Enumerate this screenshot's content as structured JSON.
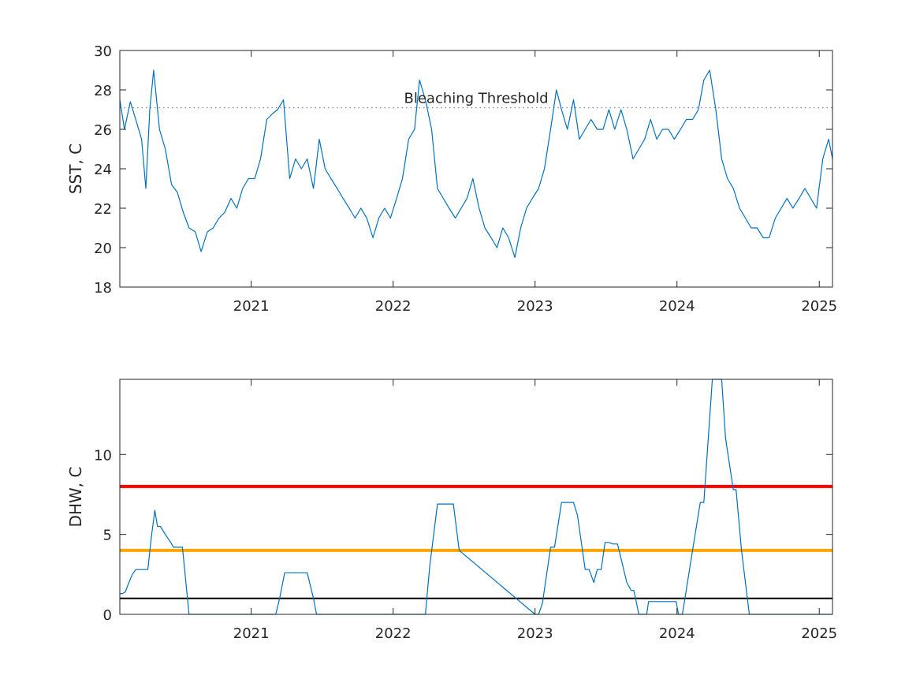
{
  "chart_data": [
    {
      "type": "line",
      "title": "",
      "xlabel": "",
      "ylabel": "SST, C",
      "xlim": [
        "2020-01-29",
        "2025-02-04"
      ],
      "ylim": [
        18,
        30
      ],
      "yticks": [
        18,
        20,
        22,
        24,
        26,
        28,
        30
      ],
      "xticks": [
        {
          "date": "2021-01-01",
          "label": "2021"
        },
        {
          "date": "2022-01-01",
          "label": "2022"
        },
        {
          "date": "2023-01-01",
          "label": "2023"
        },
        {
          "date": "2024-01-01",
          "label": "2024"
        },
        {
          "date": "2025-01-01",
          "label": "2025"
        }
      ],
      "grid": false,
      "series": [
        {
          "color": "#0072BD",
          "x": [
            "2020-01-29",
            "2020-02-10",
            "2020-02-25",
            "2020-03-10",
            "2020-03-25",
            "2020-04-05",
            "2020-04-15",
            "2020-04-25",
            "2020-05-10",
            "2020-05-25",
            "2020-06-10",
            "2020-06-25",
            "2020-07-10",
            "2020-07-25",
            "2020-08-10",
            "2020-08-25",
            "2020-09-10",
            "2020-09-25",
            "2020-10-10",
            "2020-10-25",
            "2020-11-10",
            "2020-11-25",
            "2020-12-10",
            "2020-12-25",
            "2021-01-10",
            "2021-01-25",
            "2021-02-10",
            "2021-02-25",
            "2021-03-10",
            "2021-03-25",
            "2021-04-10",
            "2021-04-25",
            "2021-05-10",
            "2021-05-25",
            "2021-06-10",
            "2021-06-25",
            "2021-07-10",
            "2021-07-25",
            "2021-08-10",
            "2021-08-25",
            "2021-09-10",
            "2021-09-25",
            "2021-10-10",
            "2021-10-25",
            "2021-11-10",
            "2021-11-25",
            "2021-12-10",
            "2021-12-25",
            "2022-01-10",
            "2022-01-25",
            "2022-02-10",
            "2022-02-25",
            "2022-03-10",
            "2022-03-25",
            "2022-04-10",
            "2022-04-25",
            "2022-05-10",
            "2022-05-25",
            "2022-06-10",
            "2022-06-25",
            "2022-07-10",
            "2022-07-25",
            "2022-08-10",
            "2022-08-25",
            "2022-09-10",
            "2022-09-25",
            "2022-10-10",
            "2022-10-25",
            "2022-11-10",
            "2022-11-25",
            "2022-12-10",
            "2022-12-25",
            "2023-01-10",
            "2023-01-25",
            "2023-02-10",
            "2023-02-25",
            "2023-03-10",
            "2023-03-25",
            "2023-04-10",
            "2023-04-25",
            "2023-05-10",
            "2023-05-25",
            "2023-06-10",
            "2023-06-25",
            "2023-07-10",
            "2023-07-25",
            "2023-08-10",
            "2023-08-25",
            "2023-09-10",
            "2023-09-25",
            "2023-10-10",
            "2023-10-25",
            "2023-11-10",
            "2023-11-25",
            "2023-12-10",
            "2023-12-25",
            "2024-01-10",
            "2024-01-25",
            "2024-02-10",
            "2024-02-25",
            "2024-03-10",
            "2024-03-25",
            "2024-04-10",
            "2024-04-25",
            "2024-05-10",
            "2024-05-25",
            "2024-06-10",
            "2024-06-25",
            "2024-07-10",
            "2024-07-25",
            "2024-08-10",
            "2024-08-25",
            "2024-09-10",
            "2024-09-25",
            "2024-10-10",
            "2024-10-25",
            "2024-11-10",
            "2024-11-25",
            "2024-12-10",
            "2024-12-25",
            "2025-01-10",
            "2025-01-25",
            "2025-02-04"
          ],
          "y": [
            27.5,
            26.0,
            27.4,
            26.5,
            25.5,
            23.0,
            27.0,
            29.0,
            26.0,
            25.0,
            23.2,
            22.8,
            21.8,
            21.0,
            20.8,
            19.8,
            20.8,
            21.0,
            21.5,
            21.8,
            22.5,
            22.0,
            23.0,
            23.5,
            23.5,
            24.5,
            26.5,
            26.8,
            27.0,
            27.5,
            23.5,
            24.5,
            24.0,
            24.5,
            23.0,
            25.5,
            24.0,
            23.5,
            23.0,
            22.5,
            22.0,
            21.5,
            22.0,
            21.5,
            20.5,
            21.5,
            22.0,
            21.5,
            22.5,
            23.5,
            25.5,
            26.0,
            28.5,
            27.5,
            26.0,
            23.0,
            22.5,
            22.0,
            21.5,
            22.0,
            22.5,
            23.5,
            22.0,
            21.0,
            20.5,
            20.0,
            21.0,
            20.5,
            19.5,
            21.0,
            22.0,
            22.5,
            23.0,
            24.0,
            26.0,
            28.0,
            27.0,
            26.0,
            27.5,
            25.5,
            26.0,
            26.5,
            26.0,
            26.0,
            27.0,
            26.0,
            27.0,
            26.0,
            24.5,
            25.0,
            25.5,
            26.5,
            25.5,
            26.0,
            26.0,
            25.5,
            26.0,
            26.5,
            26.5,
            27.0,
            28.5,
            29.0,
            27.0,
            24.5,
            23.5,
            23.0,
            22.0,
            21.5,
            21.0,
            21.0,
            20.5,
            20.5,
            21.5,
            22.0,
            22.5,
            22.0,
            22.5,
            23.0,
            22.5,
            22.0,
            24.5,
            25.5,
            24.5
          ]
        }
      ],
      "reference_lines": [
        {
          "name": "Bleaching Threshold",
          "y": 27.1,
          "color": "#7E7ED8",
          "style": "dotted"
        }
      ]
    },
    {
      "type": "line",
      "title": "",
      "xlabel": "",
      "ylabel": "DHW, C",
      "xlim": [
        "2020-01-29",
        "2025-02-04"
      ],
      "ylim": [
        0,
        14.7
      ],
      "yticks": [
        0,
        5,
        10
      ],
      "xticks": [
        {
          "date": "2021-01-01",
          "label": "2021"
        },
        {
          "date": "2022-01-01",
          "label": "2022"
        },
        {
          "date": "2023-01-01",
          "label": "2023"
        },
        {
          "date": "2024-01-01",
          "label": "2024"
        },
        {
          "date": "2025-01-01",
          "label": "2025"
        }
      ],
      "grid": false,
      "series": [
        {
          "color": "#0072BD",
          "x": [
            "2020-01-29",
            "2020-02-05",
            "2020-02-12",
            "2020-02-20",
            "2020-03-01",
            "2020-03-10",
            "2020-04-10",
            "2020-04-20",
            "2020-04-28",
            "2020-05-05",
            "2020-05-12",
            "2020-05-25",
            "2020-06-08",
            "2020-06-15",
            "2020-06-25",
            "2020-07-08",
            "2020-07-25",
            "2021-03-05",
            "2021-03-15",
            "2021-03-28",
            "2021-05-25",
            "2021-06-10",
            "2021-06-18",
            "2022-03-25",
            "2022-04-05",
            "2022-04-25",
            "2022-05-05",
            "2022-06-05",
            "2022-06-20",
            "2023-01-01",
            "2023-01-10",
            "2023-01-20",
            "2023-02-10",
            "2023-02-20",
            "2023-03-10",
            "2023-03-22",
            "2023-04-10",
            "2023-04-20",
            "2023-05-10",
            "2023-05-20",
            "2023-06-01",
            "2023-06-10",
            "2023-06-20",
            "2023-06-30",
            "2023-07-10",
            "2023-07-20",
            "2023-08-01",
            "2023-08-25",
            "2023-09-05",
            "2023-09-12",
            "2023-09-25",
            "2023-10-15",
            "2023-10-20",
            "2023-11-05",
            "2023-11-10",
            "2023-12-30",
            "2024-01-05",
            "2024-01-15",
            "2024-02-10",
            "2024-03-01",
            "2024-03-10",
            "2024-04-01",
            "2024-04-25",
            "2024-05-05",
            "2024-05-25",
            "2024-06-01",
            "2024-06-15",
            "2024-07-05",
            "2025-02-04"
          ],
          "y": [
            1.3,
            1.3,
            1.4,
            1.9,
            2.5,
            2.8,
            2.8,
            5.0,
            6.5,
            5.5,
            5.5,
            5.0,
            4.5,
            4.2,
            4.2,
            4.2,
            0.0,
            0.0,
            1.0,
            2.6,
            2.6,
            1.0,
            0.0,
            0.0,
            3.0,
            6.9,
            6.9,
            6.9,
            4.0,
            0.0,
            0.0,
            0.7,
            4.2,
            4.2,
            7.0,
            7.0,
            7.0,
            6.2,
            2.8,
            2.8,
            2.0,
            2.8,
            2.8,
            4.5,
            4.5,
            4.4,
            4.4,
            2.0,
            1.5,
            1.5,
            0.0,
            0.0,
            0.8,
            0.8,
            0.8,
            0.8,
            0.0,
            0.0,
            4.0,
            7.0,
            7.0,
            14.7,
            14.7,
            11.0,
            7.8,
            7.8,
            4.0,
            0.0,
            0.0
          ]
        }
      ],
      "reference_lines": [
        {
          "y": 1,
          "color": "#000000",
          "style": "solid"
        },
        {
          "y": 4,
          "color": "#FFA500",
          "style": "solid"
        },
        {
          "y": 8,
          "color": "#FF0000",
          "style": "solid"
        }
      ]
    }
  ]
}
